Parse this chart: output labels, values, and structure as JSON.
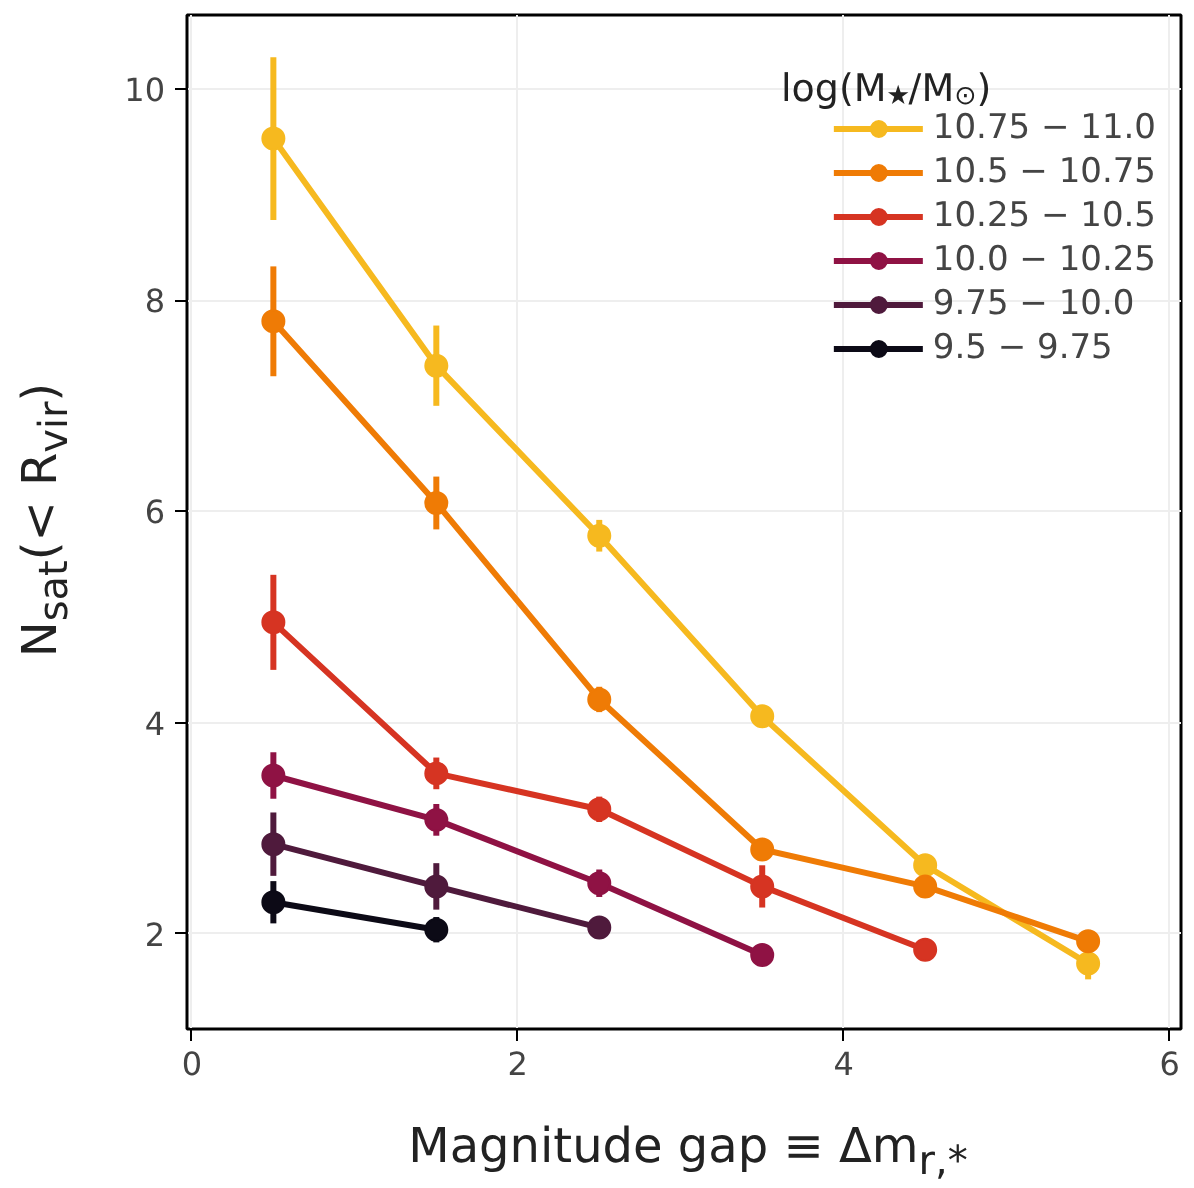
{
  "chart_data": {
    "type": "line",
    "xlabel": "Magnitude gap ≡ Δm$_{r,*}$",
    "ylabel": "N$_{sat}$(< R$_{vir}$)",
    "legend_title": "log(M$_{★}$/M$_{⊙}$)",
    "x": [
      0.5,
      1.5,
      2.5,
      3.5,
      4.5,
      5.5
    ],
    "series": [
      {
        "name": "10.75 − 11.0",
        "color": "#f6b91f",
        "values": [
          9.53,
          7.38,
          5.77,
          4.06,
          2.65,
          1.72
        ],
        "errors": [
          0.77,
          0.38,
          0.15,
          0.1,
          0.1,
          0.15
        ]
      },
      {
        "name": "10.5 − 10.75",
        "color": "#ef7b05",
        "values": [
          7.8,
          6.08,
          4.22,
          2.8,
          2.45,
          1.93
        ],
        "errors": [
          0.52,
          0.25,
          0.12,
          0.05,
          0.08,
          0.1
        ]
      },
      {
        "name": "10.25 − 10.5",
        "color": "#d63422",
        "values": [
          4.95,
          3.52,
          3.18,
          2.45,
          1.85,
          null
        ],
        "errors": [
          0.45,
          0.15,
          0.12,
          0.2,
          0.05,
          null
        ]
      },
      {
        "name": "10.0 − 10.25",
        "color": "#8f1244",
        "values": [
          3.5,
          3.08,
          2.48,
          1.8,
          null,
          null
        ],
        "errors": [
          0.22,
          0.15,
          0.13,
          0.05,
          null,
          null
        ]
      },
      {
        "name": "9.75 − 10.0",
        "color": "#4f1a3c",
        "values": [
          2.85,
          2.45,
          2.06,
          null,
          null,
          null
        ],
        "errors": [
          0.3,
          0.22,
          0.06,
          null,
          null,
          null
        ]
      },
      {
        "name": "9.5 − 9.75",
        "color": "#0c0a16",
        "values": [
          2.3,
          2.04,
          null,
          null,
          null,
          null
        ],
        "errors": [
          0.2,
          0.12,
          null,
          null,
          null,
          null
        ]
      }
    ],
    "xlim": [
      -0.03,
      6.07
    ],
    "ylim": [
      1.1,
      10.7
    ],
    "xticks": [
      0,
      2,
      4,
      6
    ],
    "yticks": [
      2,
      4,
      6,
      8,
      10
    ],
    "grid": true,
    "legend": "top right",
    "marker": "circle",
    "line_style": "solid"
  }
}
